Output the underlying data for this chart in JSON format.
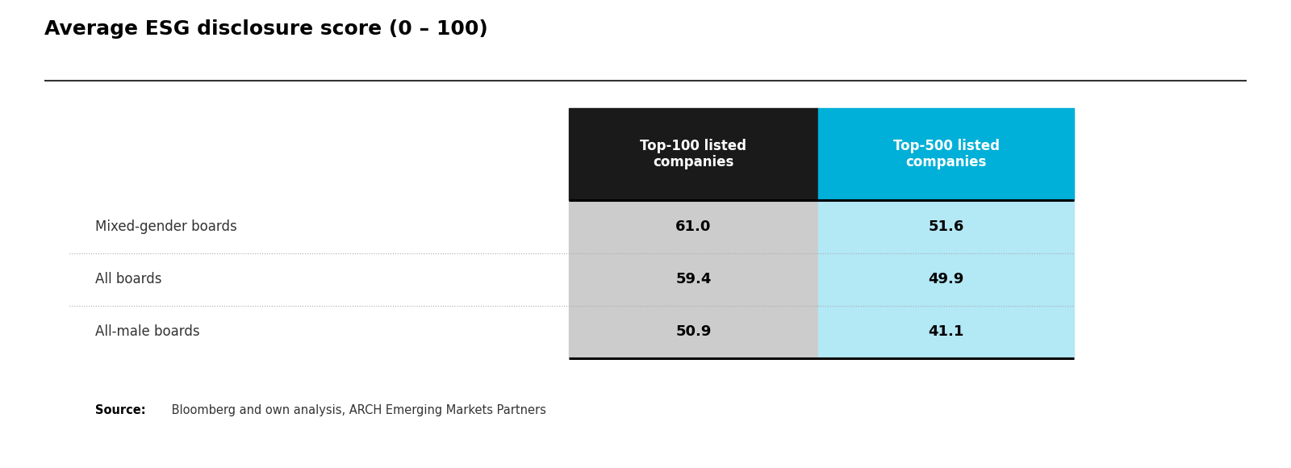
{
  "title": "Average ESG disclosure score (0 – 100)",
  "title_fontsize": 18,
  "col_headers": [
    "Top-100 listed\ncompanies",
    "Top-500 listed\ncompanies"
  ],
  "col_header_bg": [
    "#1a1a1a",
    "#00b0d8"
  ],
  "col_header_fg": [
    "#ffffff",
    "#ffffff"
  ],
  "row_labels": [
    "Mixed-gender boards",
    "All boards",
    "All-male boards"
  ],
  "col1_values": [
    "61.0",
    "59.4",
    "50.9"
  ],
  "col2_values": [
    "51.6",
    "49.9",
    "41.1"
  ],
  "col1_cell_bg": "#cccccc",
  "col2_cell_bg": "#b3e8f5",
  "cell_text_color": "#000000",
  "row_label_color": "#333333",
  "source_bold": "Source:",
  "source_text": " Bloomberg and own analysis, ARCH Emerging Markets Partners",
  "bg_color": "#ffffff",
  "figure_width": 16.0,
  "figure_height": 5.8
}
